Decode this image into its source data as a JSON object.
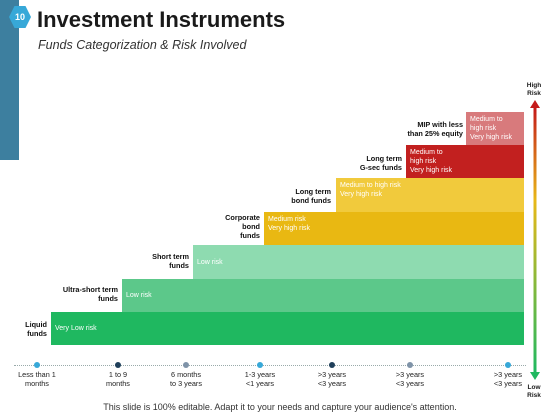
{
  "slide_number": "10",
  "title": "Investment Instruments",
  "subtitle": "Funds Categorization & Risk Involved",
  "colors": {
    "accent": "#3d7f9f",
    "badge": "#37a8d8"
  },
  "funds": [
    {
      "label": [
        "Liquid",
        "funds"
      ],
      "risk": [
        "Very Low risk"
      ],
      "color": "#1fb860"
    },
    {
      "label": [
        "Ultra-short term",
        "funds"
      ],
      "risk": [
        "Low risk"
      ],
      "color": "#5cc88a"
    },
    {
      "label": [
        "Short term",
        "funds"
      ],
      "risk": [
        "Low risk"
      ],
      "color": "#8edbb0"
    },
    {
      "label": [
        "Corporate",
        "bond",
        "funds"
      ],
      "risk": [
        "Medium risk",
        "Very high risk"
      ],
      "color": "#e9b812"
    },
    {
      "label": [
        "Long term",
        "bond funds"
      ],
      "risk": [
        "Medium to high risk",
        "Very high risk"
      ],
      "color": "#f1ca3c"
    },
    {
      "label": [
        "Long term",
        "G-sec funds"
      ],
      "risk": [
        "Medium to",
        "high risk",
        "Very high risk"
      ],
      "color": "#c2201f"
    },
    {
      "label": [
        "MIP with less",
        "than 25% equity"
      ],
      "risk": [
        "Medium to",
        "high risk",
        "Very high risk"
      ],
      "color": "#d87a7c"
    }
  ],
  "timeline": [
    {
      "text": [
        "Less than 1",
        "months"
      ],
      "dot": "#37a8d8"
    },
    {
      "text": [
        "1 to 9",
        "months"
      ],
      "dot": "#1f3f5a"
    },
    {
      "text": [
        "6 months",
        "to 3 years"
      ],
      "dot": "#7f93a8"
    },
    {
      "text": [
        "1-3 years",
        "<1 years"
      ],
      "dot": "#37a8d8"
    },
    {
      "text": [
        ">3 years",
        "<3 years"
      ],
      "dot": "#1f3f5a"
    },
    {
      "text": [
        ">3 years",
        "<3 years"
      ],
      "dot": "#7f93a8"
    },
    {
      "text": [
        ">3 years",
        "<3 years"
      ],
      "dot": "#37a8d8"
    }
  ],
  "risk_scale": {
    "high": [
      "High",
      "Risk"
    ],
    "low": [
      "Low",
      "Risk"
    ]
  },
  "footer": "This slide is 100% editable. Adapt it to your needs and capture your audience's attention."
}
